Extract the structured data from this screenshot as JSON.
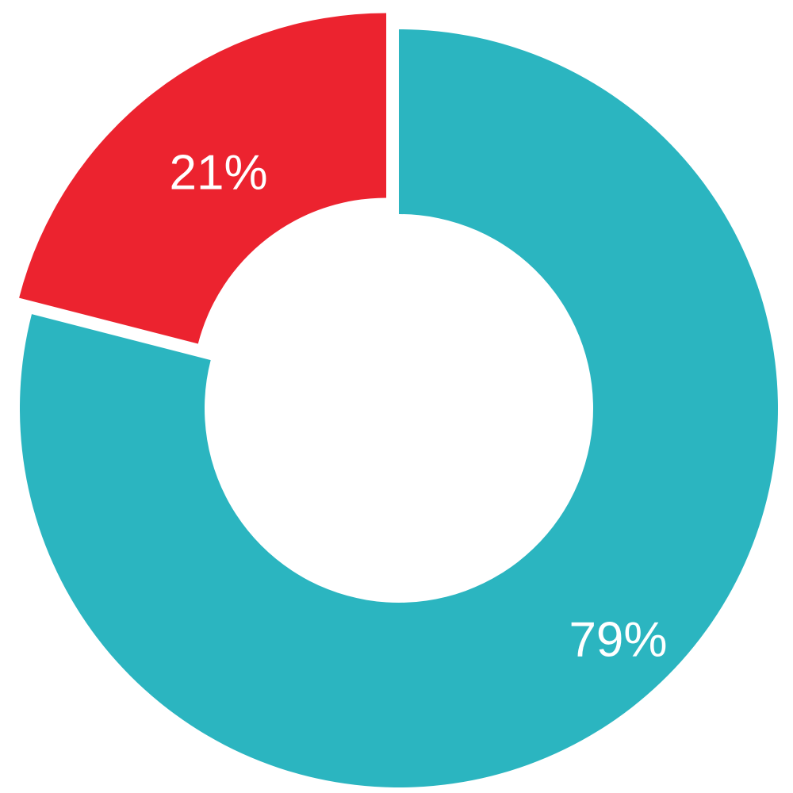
{
  "chart_data": {
    "type": "pie",
    "donut": true,
    "title": "",
    "slices": [
      {
        "value": 79,
        "label": "79%",
        "color": "#2BB5C0",
        "exploded": false
      },
      {
        "value": 21,
        "label": "21%",
        "color": "#EC232F",
        "exploded": true
      }
    ],
    "legend": "none"
  }
}
